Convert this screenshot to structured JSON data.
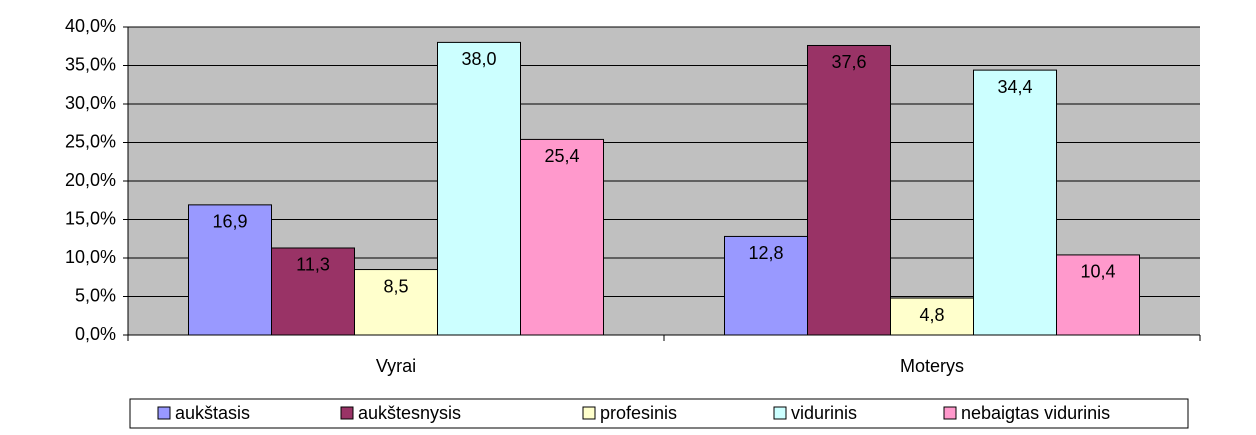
{
  "chart_data": {
    "type": "bar",
    "categories": [
      "Vyrai",
      "Moterys"
    ],
    "series": [
      {
        "name": "aukštasis",
        "color": "#9999ff",
        "values": [
          16.9,
          12.8
        ],
        "value_labels": [
          "16,9",
          "12,8"
        ]
      },
      {
        "name": "aukštesnysis",
        "color": "#993366",
        "values": [
          11.3,
          37.6
        ],
        "value_labels": [
          "11,3",
          "37,6"
        ]
      },
      {
        "name": "profesinis",
        "color": "#ffffcc",
        "values": [
          8.5,
          4.8
        ],
        "value_labels": [
          "8,5",
          "4,8"
        ]
      },
      {
        "name": "vidurinis",
        "color": "#ccffff",
        "values": [
          38.0,
          34.4
        ],
        "value_labels": [
          "38,0",
          "34,4"
        ]
      },
      {
        "name": "nebaigtas vidurinis",
        "color": "#ff99cc",
        "values": [
          25.4,
          10.4
        ],
        "value_labels": [
          "25,4",
          "10,4"
        ]
      }
    ],
    "ylim": [
      0,
      40
    ],
    "yticks": [
      {
        "value": 0,
        "label": "0,0%"
      },
      {
        "value": 5,
        "label": "5,0%"
      },
      {
        "value": 10,
        "label": "10,0%"
      },
      {
        "value": 15,
        "label": "15,0%"
      },
      {
        "value": 20,
        "label": "20,0%"
      },
      {
        "value": 25,
        "label": "25,0%"
      },
      {
        "value": 30,
        "label": "30,0%"
      },
      {
        "value": 35,
        "label": "35,0%"
      },
      {
        "value": 40,
        "label": "40,0%"
      }
    ],
    "grid": true,
    "plot_background": "#c0c0c0",
    "legend": "bottom"
  }
}
